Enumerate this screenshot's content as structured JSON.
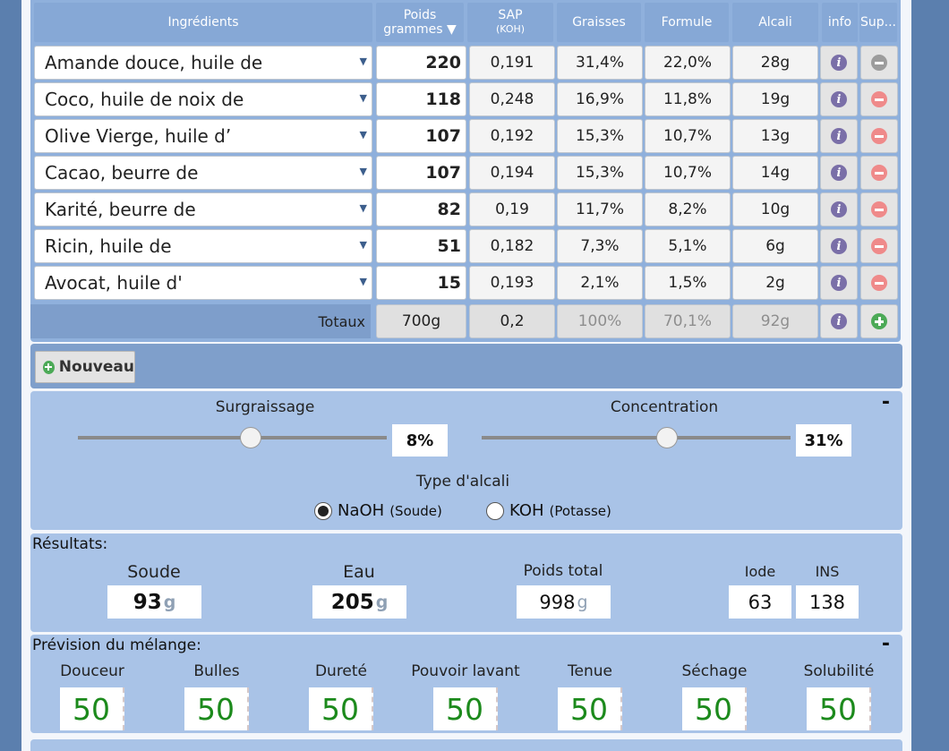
{
  "table": {
    "headers": {
      "ingredients": "Ingrédients",
      "poids_line1": "Poids",
      "poids_line2": "grammes ▼",
      "sap_line1": "SAP",
      "sap_line2": "(KOH)",
      "graisses": "Graisses",
      "formule": "Formule",
      "alcali": "Alcali",
      "info": "info",
      "sup": "Sup..."
    },
    "rows": [
      {
        "name": "Amande douce, huile de",
        "weight": "220",
        "sap": "0,191",
        "graisses": "31,4%",
        "formule": "22,0%",
        "alcali": "28g",
        "delete_disabled": true
      },
      {
        "name": "Coco, huile de noix de",
        "weight": "118",
        "sap": "0,248",
        "graisses": "16,9%",
        "formule": "11,8%",
        "alcali": "19g",
        "delete_disabled": false
      },
      {
        "name": "Olive Vierge, huile d’",
        "weight": "107",
        "sap": "0,192",
        "graisses": "15,3%",
        "formule": "10,7%",
        "alcali": "13g",
        "delete_disabled": false
      },
      {
        "name": "Cacao, beurre de",
        "weight": "107",
        "sap": "0,194",
        "graisses": "15,3%",
        "formule": "10,7%",
        "alcali": "14g",
        "delete_disabled": false
      },
      {
        "name": "Karité, beurre de",
        "weight": "82",
        "sap": "0,19",
        "graisses": "11,7%",
        "formule": "8,2%",
        "alcali": "10g",
        "delete_disabled": false
      },
      {
        "name": "Ricin, huile de",
        "weight": "51",
        "sap": "0,182",
        "graisses": "7,3%",
        "formule": "5,1%",
        "alcali": "6g",
        "delete_disabled": false
      },
      {
        "name": "Avocat, huile d'",
        "weight": "15",
        "sap": "0,193",
        "graisses": "2,1%",
        "formule": "1,5%",
        "alcali": "2g",
        "delete_disabled": false
      }
    ],
    "totals": {
      "label": "Totaux",
      "weight": "700g",
      "sap": "0,2",
      "graisses": "100%",
      "formule": "70,1%",
      "alcali": "92g"
    }
  },
  "nouveau_label": "Nouveau",
  "settings": {
    "collapse_label": "-",
    "surgraissage_label": "Surgraissage",
    "surgraissage_value": "8%",
    "surgraissage_slider_fraction": 0.56,
    "concentration_label": "Concentration",
    "concentration_value": "31%",
    "concentration_slider_fraction": 0.6,
    "alkali_type_label": "Type d'alcali",
    "naoh_label": "NaOH",
    "naoh_sub": "(Soude)",
    "koh_label": "KOH",
    "koh_sub": "(Potasse)",
    "selected_alkali": "NaOH"
  },
  "results": {
    "title": "Résultats:",
    "soude_label": "Soude",
    "soude_value": "93",
    "eau_label": "Eau",
    "eau_value": "205",
    "poids_total_label": "Poids total",
    "poids_total_value": "998",
    "unit": "g",
    "iode_label": "Iode",
    "iode_value": "63",
    "ins_label": "INS",
    "ins_value": "138"
  },
  "prevision": {
    "title": "Prévision du mélange:",
    "collapse_label": "-",
    "items": [
      {
        "label": "Douceur",
        "value": "50"
      },
      {
        "label": "Bulles",
        "value": "50"
      },
      {
        "label": "Dureté",
        "value": "50"
      },
      {
        "label": "Pouvoir lavant",
        "value": "50"
      },
      {
        "label": "Tenue",
        "value": "50"
      },
      {
        "label": "Séchage",
        "value": "50"
      },
      {
        "label": "Solubilité",
        "value": "50"
      }
    ]
  }
}
